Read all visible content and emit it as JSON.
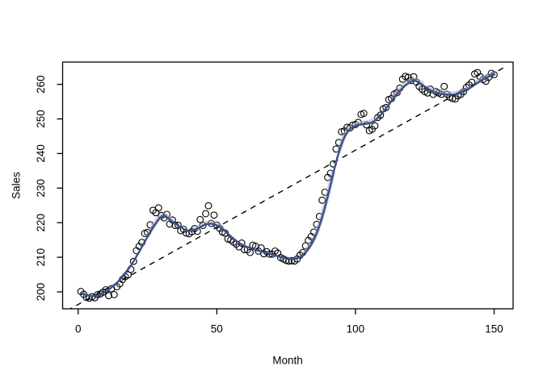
{
  "chart_data": {
    "type": "scatter",
    "title": "",
    "xlabel": "Month",
    "ylabel": "Sales",
    "x_range_shown": [
      0,
      150
    ],
    "y_range_shown": [
      200,
      260
    ],
    "xticks": [
      0,
      50,
      100,
      150
    ],
    "yticks": [
      200,
      210,
      220,
      230,
      240,
      250,
      260
    ],
    "grid": false,
    "legend": null,
    "point_color": "#000000",
    "smooth_color": "#3D4E8A",
    "smooth_halo_color": "rgba(158,168,198,0.5)",
    "trend_color": "#000000",
    "series": [
      {
        "name": "monthly-sales-points",
        "type": "scatter",
        "marker": "open-circle",
        "x_start": 1,
        "x_step": 1,
        "values": [
          200.1,
          199.3,
          198.4,
          198.2,
          198.6,
          198.3,
          199.2,
          199.4,
          199.9,
          200.6,
          198.9,
          200.9,
          199.2,
          201.5,
          202.3,
          203.6,
          204.4,
          204.9,
          206.5,
          208.8,
          211.9,
          213.2,
          214.3,
          216.9,
          217.2,
          219.4,
          223.6,
          222.9,
          224.3,
          222.1,
          221.4,
          222.4,
          219.6,
          220.8,
          219.2,
          219.3,
          217.7,
          218.1,
          217.0,
          216.8,
          217.4,
          218.3,
          217.5,
          220.9,
          219.2,
          222.6,
          224.9,
          219.8,
          222.2,
          219.3,
          218.4,
          217.3,
          217.0,
          215.3,
          215.0,
          214.4,
          213.8,
          213.0,
          214.1,
          212.2,
          212.2,
          211.4,
          213.5,
          213.2,
          211.8,
          212.7,
          211.0,
          211.6,
          210.9,
          210.9,
          211.8,
          211.2,
          209.9,
          209.5,
          209.1,
          208.9,
          209.0,
          208.9,
          209.5,
          210.6,
          211.4,
          213.3,
          214.9,
          216.0,
          217.3,
          219.5,
          221.8,
          226.5,
          228.8,
          233.1,
          234.3,
          237.0,
          241.3,
          243.2,
          246.3,
          246.5,
          247.6,
          247.4,
          248.2,
          248.4,
          249.0,
          251.3,
          251.6,
          248.3,
          246.6,
          247.0,
          248.0,
          250.4,
          251.1,
          252.9,
          253.3,
          255.6,
          255.9,
          257.2,
          257.6,
          258.9,
          261.5,
          262.3,
          262.0,
          261.1,
          262.2,
          260.6,
          259.4,
          258.6,
          257.9,
          257.5,
          258.6,
          257.1,
          257.9,
          257.5,
          257.1,
          259.4,
          257.1,
          256.3,
          255.9,
          255.8,
          256.7,
          257.1,
          257.9,
          259.1,
          259.8,
          260.6,
          263.0,
          263.4,
          262.2,
          261.4,
          260.9,
          262.0,
          263.2,
          262.8
        ]
      },
      {
        "name": "lowess-smooth",
        "type": "line",
        "points": [
          [
            1,
            199.7
          ],
          [
            3,
            199.1
          ],
          [
            5,
            198.8
          ],
          [
            7,
            199.0
          ],
          [
            9,
            199.7
          ],
          [
            11,
            200.7
          ],
          [
            13,
            201.9
          ],
          [
            15,
            203.5
          ],
          [
            17,
            205.5
          ],
          [
            19,
            207.6
          ],
          [
            21,
            210.2
          ],
          [
            23,
            213.0
          ],
          [
            25,
            215.9
          ],
          [
            27,
            218.6
          ],
          [
            29,
            220.9
          ],
          [
            30,
            221.7
          ],
          [
            31,
            221.8
          ],
          [
            32,
            221.5
          ],
          [
            34,
            220.3
          ],
          [
            36,
            219.2
          ],
          [
            38,
            218.2
          ],
          [
            40,
            217.7
          ],
          [
            42,
            217.9
          ],
          [
            44,
            218.7
          ],
          [
            46,
            219.5
          ],
          [
            48,
            219.7
          ],
          [
            50,
            219.2
          ],
          [
            52,
            218.2
          ],
          [
            54,
            216.8
          ],
          [
            56,
            215.4
          ],
          [
            58,
            214.2
          ],
          [
            60,
            213.3
          ],
          [
            62,
            212.7
          ],
          [
            64,
            212.1
          ],
          [
            66,
            211.7
          ],
          [
            68,
            211.3
          ],
          [
            70,
            210.8
          ],
          [
            72,
            210.3
          ],
          [
            74,
            209.8
          ],
          [
            76,
            209.5
          ],
          [
            78,
            209.5
          ],
          [
            80,
            210.1
          ],
          [
            82,
            211.4
          ],
          [
            84,
            213.6
          ],
          [
            86,
            216.9
          ],
          [
            88,
            221.6
          ],
          [
            90,
            227.6
          ],
          [
            92,
            234.2
          ],
          [
            94,
            240.3
          ],
          [
            96,
            244.7
          ],
          [
            98,
            247.0
          ],
          [
            100,
            248.0
          ],
          [
            102,
            248.4
          ],
          [
            104,
            248.6
          ],
          [
            106,
            249.0
          ],
          [
            108,
            250.2
          ],
          [
            110,
            252.0
          ],
          [
            112,
            254.1
          ],
          [
            114,
            256.2
          ],
          [
            116,
            258.1
          ],
          [
            118,
            259.7
          ],
          [
            120,
            260.8
          ],
          [
            121,
            261.0
          ],
          [
            122,
            260.9
          ],
          [
            124,
            259.9
          ],
          [
            126,
            258.8
          ],
          [
            128,
            257.9
          ],
          [
            130,
            257.4
          ],
          [
            132,
            257.1
          ],
          [
            134,
            257.0
          ],
          [
            136,
            257.1
          ],
          [
            138,
            257.6
          ],
          [
            140,
            258.3
          ],
          [
            142,
            259.3
          ],
          [
            144,
            260.4
          ],
          [
            146,
            261.4
          ],
          [
            148,
            262.2
          ],
          [
            150,
            262.8
          ]
        ],
        "halo_segments": [
          [
            24,
            34
          ],
          [
            41,
            53
          ],
          [
            82,
            92
          ],
          [
            94,
            108
          ],
          [
            114,
            124
          ],
          [
            126,
            140
          ],
          [
            143,
            150
          ]
        ]
      },
      {
        "name": "linear-trend",
        "type": "line-dashed",
        "intercept": 196.35,
        "slope": 0.446
      }
    ]
  }
}
